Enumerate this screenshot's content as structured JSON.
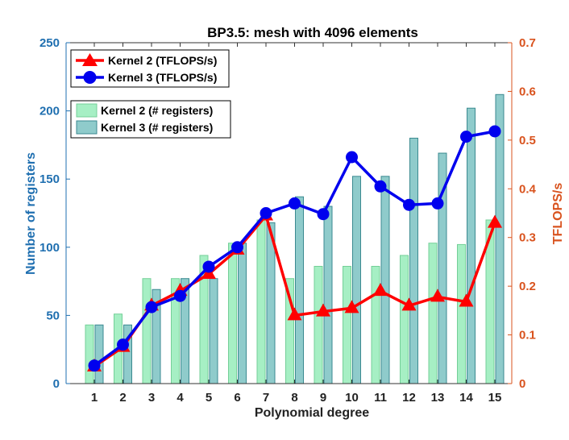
{
  "chart_data": {
    "type": "bar+line",
    "title": "BP3.5: mesh with 4096 elements",
    "xlabel": "Polynomial degree",
    "ylabel_left": "Number of registers",
    "ylabel_right": "TFLOPS/s",
    "categories": [
      "1",
      "2",
      "3",
      "4",
      "5",
      "6",
      "7",
      "8",
      "9",
      "10",
      "11",
      "12",
      "13",
      "14",
      "15"
    ],
    "ylim_left": [
      0,
      250
    ],
    "yticks_left": [
      "0",
      "50",
      "100",
      "150",
      "200",
      "250"
    ],
    "ylim_right": [
      0,
      0.7
    ],
    "yticks_right": [
      "0",
      "0.1",
      "0.2",
      "0.3",
      "0.4",
      "0.5",
      "0.6",
      "0.7"
    ],
    "bar_series": [
      {
        "name": "Kernel 2 (# registers)",
        "values": [
          43,
          51,
          77,
          77,
          94,
          103,
          120,
          77,
          86,
          86,
          86,
          94,
          103,
          102,
          120
        ]
      },
      {
        "name": "Kernel 3 (# registers)",
        "values": [
          43,
          43,
          69,
          77,
          77,
          103,
          118,
          137,
          130,
          152,
          152,
          180,
          169,
          202,
          212
        ]
      }
    ],
    "line_series": [
      {
        "name": "Kernel 2 (TFLOPS/s)",
        "marker": "triangle",
        "values": [
          0.035,
          0.075,
          0.16,
          0.19,
          0.225,
          0.275,
          0.345,
          0.14,
          0.148,
          0.155,
          0.19,
          0.16,
          0.178,
          0.168,
          0.33
        ]
      },
      {
        "name": "Kernel 3 (TFLOPS/s)",
        "marker": "circle",
        "values": [
          0.037,
          0.08,
          0.157,
          0.18,
          0.24,
          0.28,
          0.35,
          0.37,
          0.348,
          0.465,
          0.405,
          0.367,
          0.37,
          0.507,
          0.518
        ]
      }
    ],
    "colors": {
      "bar1_fill": "#a6efc4",
      "bar1_stroke": "#74cf98",
      "bar2_fill": "#8fcbcb",
      "bar2_stroke": "#3b8a90",
      "line1": "#ff0000",
      "line2": "#0000ee",
      "left_axis": "#1f6fb0",
      "right_axis": "#d9531e"
    }
  }
}
